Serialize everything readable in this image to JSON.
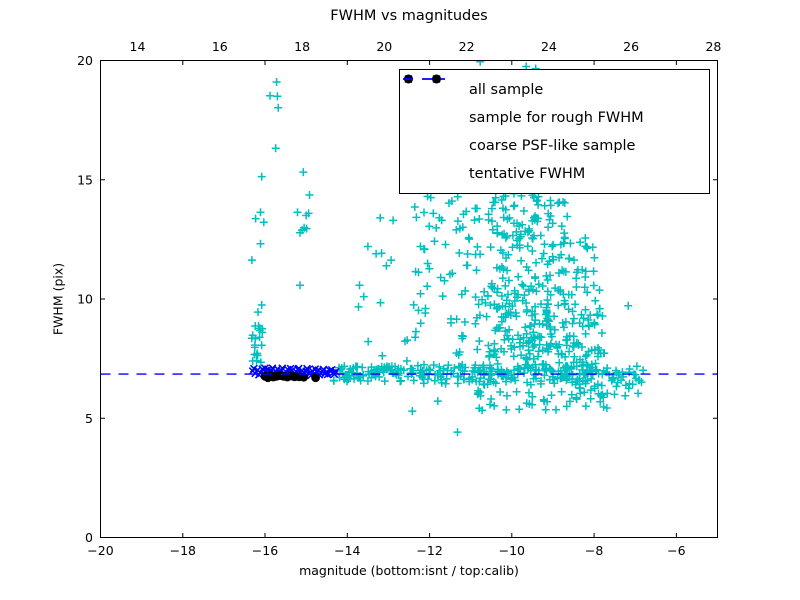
{
  "chart_data": {
    "type": "scatter",
    "title": "FWHM vs magnitudes",
    "xlabel": "magnitude (bottom:isnt / top:calib)",
    "ylabel": "FWHM (pix)",
    "xlim": [
      -20,
      -5
    ],
    "ylim": [
      0,
      20
    ],
    "x_ticks_bottom": [
      -20,
      -18,
      -16,
      -14,
      -12,
      -10,
      -8,
      -6
    ],
    "x_ticks_top": [
      14,
      16,
      18,
      20,
      22,
      24,
      26,
      28
    ],
    "top_axis_offset": 33.1,
    "y_ticks": [
      0,
      5,
      10,
      15,
      20
    ],
    "grid": false,
    "legend_position": "upper-right",
    "render_seed": 7,
    "colors": {
      "all_sample": "#00bfbf",
      "rough_fwhm": "#0000ff",
      "psf_like": "#000000",
      "tentative_line": "#0000ff",
      "axes": "#000000"
    },
    "series": [
      {
        "name": "all sample",
        "marker": "plus",
        "color": "#00bfbf",
        "points": [
          [
            -15.72,
            19.1
          ],
          [
            -15.88,
            18.52
          ],
          [
            -15.7,
            18.5
          ],
          [
            -15.68,
            18.02
          ],
          [
            -15.74,
            16.32
          ],
          [
            -16.08,
            15.13
          ],
          [
            -15.07,
            15.32
          ],
          [
            -14.92,
            14.36
          ],
          [
            -16.11,
            13.64
          ],
          [
            -16.23,
            13.37
          ],
          [
            -16.03,
            13.22
          ],
          [
            -15.21,
            13.64
          ],
          [
            -15.0,
            13.5
          ],
          [
            -14.94,
            13.59
          ],
          [
            -15.1,
            12.89
          ],
          [
            -15.05,
            12.99
          ],
          [
            -14.99,
            12.95
          ],
          [
            -15.15,
            12.78
          ],
          [
            -16.11,
            12.32
          ],
          [
            -16.32,
            11.63
          ],
          [
            -15.15,
            10.58
          ],
          [
            -16.08,
            9.75
          ],
          [
            -16.17,
            9.45
          ],
          [
            -16.24,
            8.87
          ],
          [
            -16.16,
            8.87
          ],
          [
            -16.13,
            8.68
          ],
          [
            -16.07,
            8.6
          ],
          [
            -16.24,
            8.33
          ],
          [
            -16.08,
            8.06
          ],
          [
            -16.25,
            7.97
          ],
          [
            -16.2,
            7.64
          ],
          [
            -16.3,
            7.4
          ],
          [
            -16.1,
            7.35
          ],
          [
            -13.2,
            13.4
          ],
          [
            -13.5,
            12.2
          ],
          [
            -13.3,
            11.9
          ],
          [
            -13.6,
            10.1
          ],
          [
            -12.05,
            14.3
          ],
          [
            -11.97,
            14.25
          ],
          [
            -12.32,
            13.42
          ],
          [
            -11.76,
            13.4
          ],
          [
            -12.22,
            12.2
          ],
          [
            -12.12,
            12.08
          ],
          [
            -11.88,
            12.42
          ],
          [
            -12.27,
            11.12
          ],
          [
            -11.73,
            10.9
          ],
          [
            -12.22,
            10.22
          ],
          [
            -11.68,
            10.12
          ],
          [
            -12.27,
            9.52
          ],
          [
            -12.1,
            9.6
          ],
          [
            -11.48,
            9.0
          ],
          [
            -12.35,
            8.4
          ],
          [
            -9.95,
            14.42
          ],
          [
            -9.5,
            14.35
          ],
          [
            -10.2,
            14.3
          ],
          [
            -10.45,
            14.05
          ],
          [
            -10.77,
            19.95
          ],
          [
            -9.65,
            19.75
          ],
          [
            -9.42,
            19.66
          ],
          [
            -7.17,
            9.72
          ],
          [
            -11.32,
            4.42
          ],
          [
            -12.42,
            5.3
          ],
          [
            -11.8,
            5.72
          ],
          [
            -9.82,
            5.38
          ],
          [
            -13.15,
            7.62
          ],
          [
            -12.55,
            7.4
          ]
        ],
        "clusters": [
          {
            "n": 85,
            "x": [
              -14.35,
              -12.35
            ],
            "y": [
              6.55,
              7.18
            ]
          },
          {
            "n": 85,
            "x": [
              -12.35,
              -10.35
            ],
            "y": [
              6.4,
              7.25
            ]
          },
          {
            "n": 95,
            "x": [
              -10.35,
              -8.15
            ],
            "y": [
              6.4,
              7.3
            ]
          },
          {
            "n": 22,
            "x": [
              -8.15,
              -7.05
            ],
            "y": [
              6.3,
              7.15
            ]
          },
          {
            "n": 7,
            "x": [
              -7.05,
              -6.75
            ],
            "y": [
              6.5,
              7.05
            ]
          },
          {
            "n": 10,
            "x": [
              -13.85,
              -12.45
            ],
            "y": [
              7.8,
              13.6
            ]
          },
          {
            "n": 24,
            "x": [
              -12.45,
              -11.25
            ],
            "y": [
              8.3,
              14.3
            ]
          },
          {
            "n": 60,
            "x": [
              -11.35,
              -10.35
            ],
            "y": [
              7.5,
              14.1
            ]
          },
          {
            "n": 110,
            "x": [
              -10.45,
              -8.65
            ],
            "y": [
              10.6,
              14.35
            ]
          },
          {
            "n": 150,
            "x": [
              -10.45,
              -8.65
            ],
            "y": [
              7.4,
              10.6
            ]
          },
          {
            "n": 45,
            "x": [
              -8.75,
              -7.75
            ],
            "y": [
              9.0,
              12.6
            ]
          },
          {
            "n": 90,
            "x": [
              -8.85,
              -7.65
            ],
            "y": [
              5.4,
              9.0
            ]
          },
          {
            "n": 26,
            "x": [
              -10.9,
              -8.9
            ],
            "y": [
              5.3,
              6.45
            ]
          },
          {
            "n": 10,
            "x": [
              -7.6,
              -6.85
            ],
            "y": [
              5.9,
              7.3
            ]
          },
          {
            "n": 10,
            "x": [
              -16.35,
              -15.95
            ],
            "y": [
              7.4,
              9.2
            ]
          }
        ]
      },
      {
        "name": "sample for rough FWHM",
        "marker": "x",
        "color": "#0000ff",
        "points": [
          [
            -16.3,
            6.98
          ],
          [
            -16.24,
            6.88
          ],
          [
            -16.18,
            7.02
          ],
          [
            -16.12,
            6.92
          ],
          [
            -16.07,
            7.06
          ],
          [
            -16.02,
            6.85
          ],
          [
            -15.97,
            6.95
          ],
          [
            -15.92,
            7.05
          ],
          [
            -15.88,
            6.9
          ],
          [
            -15.84,
            7.0
          ],
          [
            -15.79,
            6.87
          ],
          [
            -15.74,
            6.97
          ],
          [
            -15.7,
            7.07
          ],
          [
            -15.65,
            6.9
          ],
          [
            -15.6,
            7.0
          ],
          [
            -15.55,
            6.86
          ],
          [
            -15.5,
            6.96
          ],
          [
            -15.45,
            7.05
          ],
          [
            -15.4,
            6.9
          ],
          [
            -15.35,
            6.99
          ],
          [
            -15.3,
            6.88
          ],
          [
            -15.25,
            6.97
          ],
          [
            -15.2,
            7.04
          ],
          [
            -15.15,
            6.91
          ],
          [
            -15.1,
            7.0
          ],
          [
            -15.05,
            6.88
          ],
          [
            -15.0,
            6.97
          ],
          [
            -14.95,
            7.03
          ],
          [
            -14.9,
            6.9
          ],
          [
            -14.85,
            6.98
          ],
          [
            -14.8,
            6.88
          ],
          [
            -14.75,
            6.96
          ],
          [
            -14.7,
            7.02
          ],
          [
            -14.65,
            6.9
          ],
          [
            -14.6,
            6.97
          ],
          [
            -14.55,
            6.87
          ],
          [
            -14.5,
            6.95
          ],
          [
            -14.42,
            7.0
          ],
          [
            -14.35,
            6.9
          ],
          [
            -14.28,
            6.95
          ],
          [
            -16.27,
            7.08
          ],
          [
            -16.15,
            6.82
          ],
          [
            -16.0,
            7.1
          ],
          [
            -15.9,
            6.8
          ],
          [
            -15.82,
            7.1
          ],
          [
            -15.68,
            6.82
          ],
          [
            -15.58,
            7.1
          ],
          [
            -15.48,
            6.8
          ],
          [
            -15.38,
            7.08
          ],
          [
            -15.28,
            6.82
          ],
          [
            -15.18,
            7.09
          ],
          [
            -15.08,
            6.82
          ],
          [
            -14.98,
            7.08
          ],
          [
            -14.88,
            6.8
          ],
          [
            -14.78,
            7.06
          ],
          [
            -14.68,
            6.82
          ],
          [
            -14.58,
            7.05
          ],
          [
            -14.48,
            6.83
          ],
          [
            -14.38,
            7.03
          ],
          [
            -14.31,
            6.85
          ]
        ]
      },
      {
        "name": "coarse PSF-like sample",
        "marker": "dot",
        "color": "#000000",
        "points": [
          [
            -16.0,
            6.76
          ],
          [
            -15.93,
            6.7
          ],
          [
            -15.86,
            6.79
          ],
          [
            -15.8,
            6.73
          ],
          [
            -15.72,
            6.76
          ],
          [
            -15.64,
            6.79
          ],
          [
            -15.55,
            6.76
          ],
          [
            -15.46,
            6.73
          ],
          [
            -15.37,
            6.77
          ],
          [
            -15.28,
            6.74
          ],
          [
            -15.17,
            6.74
          ],
          [
            -15.06,
            6.72
          ],
          [
            -14.77,
            6.7
          ]
        ]
      },
      {
        "name": "tentative FWHM",
        "type": "hline",
        "style": "dashed",
        "color": "#0000ff",
        "y": 6.85
      }
    ]
  }
}
